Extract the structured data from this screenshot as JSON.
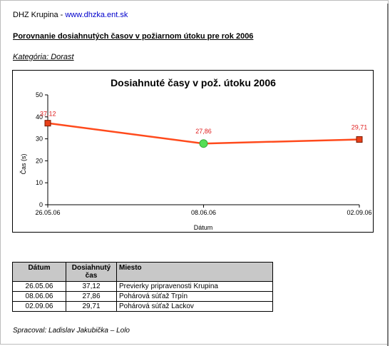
{
  "header": {
    "org": "DHZ Krupina - ",
    "url": "www.dhzka.ent.sk"
  },
  "doc_title": "Porovnanie dosiahnutých časov v požiarnom útoku pre rok 2006",
  "category": "Kategória: Dorast",
  "chart_data": {
    "type": "line",
    "title": "Dosiahnuté časy v pož. útoku 2006",
    "xlabel": "Dátum",
    "ylabel": "Čas (s)",
    "categories": [
      "26.05.06",
      "08.06.06",
      "02.09.06"
    ],
    "values": [
      37.12,
      27.86,
      29.71
    ],
    "value_labels": [
      "37,12",
      "27,86",
      "29,71"
    ],
    "yticks": [
      0,
      10,
      20,
      30,
      40,
      50
    ],
    "ylim": [
      0,
      50
    ],
    "grid": false,
    "line_color": "#ff4a1c",
    "marker_color": "#e8401a",
    "highlight_color": "#55dd55",
    "highlight_index": 1,
    "label_color": "#e02020"
  },
  "table": {
    "headers": [
      "Dátum",
      "Dosiahnutý čas",
      "Miesto"
    ],
    "rows": [
      [
        "26.05.06",
        "37,12",
        "Previerky pripravenosti Krupina"
      ],
      [
        "08.06.06",
        "27,86",
        "Pohárová súťaž Trpín"
      ],
      [
        "02.09.06",
        "29,71",
        "Pohárová súťaž Lackov"
      ]
    ]
  },
  "footer": "Spracoval: Ladislav Jakubička – Lolo"
}
